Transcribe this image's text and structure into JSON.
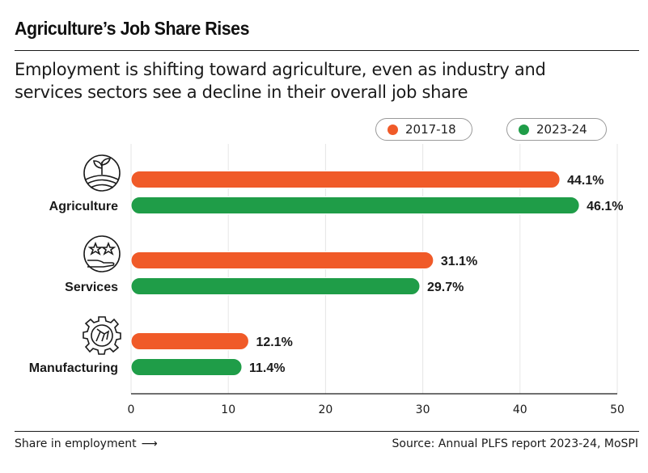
{
  "header": {
    "title": "Agriculture’s Job Share Rises",
    "subtitle": "Employment is shifting toward agriculture, even as industry and services sectors see a decline in their overall job share"
  },
  "footer": {
    "left_label": "Share in employment",
    "left_arrow": "⟶",
    "source": "Source: Annual PLFS report 2023-24, MoSPI"
  },
  "colors": {
    "series_2017": "#f05a28",
    "series_2023": "#1f9d48",
    "grid": "#e6e6e6",
    "text": "#1a1a1a"
  },
  "chart_data": {
    "type": "bar",
    "orientation": "horizontal",
    "title": "Agriculture’s Job Share Rises",
    "xlabel": "Share in employment",
    "ylabel": "",
    "xlim": [
      0,
      50
    ],
    "xticks": [
      0,
      10,
      20,
      30,
      40,
      50
    ],
    "grid": true,
    "legend_position": "top-right",
    "categories": [
      "Agriculture",
      "Services",
      "Manufacturing"
    ],
    "category_icons": [
      "agriculture-icon",
      "services-icon",
      "manufacturing-icon"
    ],
    "series": [
      {
        "name": "2017-18",
        "values": [
          44.1,
          31.1,
          12.1
        ],
        "labels": [
          "44.1%",
          "31.1%",
          "12.1%"
        ]
      },
      {
        "name": "2023-24",
        "values": [
          46.1,
          29.7,
          11.4
        ],
        "labels": [
          "46.1%",
          "29.7%",
          "11.4%"
        ]
      }
    ]
  }
}
